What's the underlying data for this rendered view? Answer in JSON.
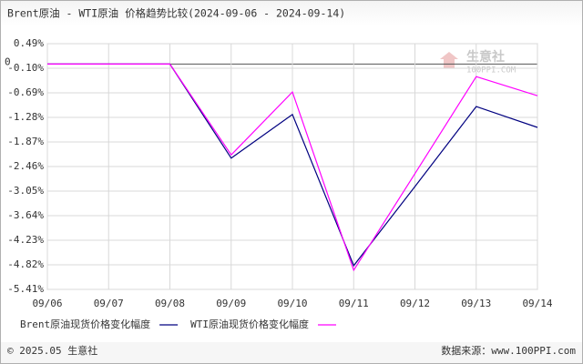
{
  "chart_data": {
    "type": "line",
    "title": "Brent原油 - WTI原油 价格趋势比较(2024-09-06 - 2024-09-14)",
    "categories": [
      "09/06",
      "09/07",
      "09/08",
      "09/09",
      "09/10",
      "09/11",
      "09/12",
      "09/13",
      "09/14"
    ],
    "series": [
      {
        "name": "Brent原油现货价格变化幅度",
        "color": "#000080",
        "values": [
          0,
          0,
          0,
          -2.26,
          -1.21,
          -4.84,
          -2.94,
          -1.02,
          -1.52
        ]
      },
      {
        "name": "WTI原油现货价格变化幅度",
        "color": "#ff00ff",
        "values": [
          0,
          0,
          0,
          -2.18,
          -0.67,
          -4.95,
          -2.63,
          -0.3,
          -0.76
        ]
      }
    ],
    "ylim": [
      -5.41,
      0.49
    ],
    "yticks": [
      {
        "value": 0.49,
        "label": "0.49%"
      },
      0,
      {
        "value": -0.1,
        "label": "-0.10%"
      },
      {
        "value": -0.69,
        "label": "-0.69%"
      },
      {
        "value": -1.28,
        "label": "-1.28%"
      },
      {
        "value": -1.87,
        "label": "-1.87%"
      },
      {
        "value": -2.46,
        "label": "-2.46%"
      },
      {
        "value": -3.05,
        "label": "-3.05%"
      },
      {
        "value": -3.64,
        "label": "-3.64%"
      },
      {
        "value": -4.23,
        "label": "-4.23%"
      },
      {
        "value": -4.82,
        "label": "-4.82%"
      },
      {
        "value": -5.41,
        "label": "-5.41%"
      }
    ],
    "grid": true,
    "watermark": {
      "name": "生意社",
      "site": "100PPI.COM"
    },
    "footer": {
      "left": "© 2025.05 生意社",
      "right": "数据来源：www.100PPI.com"
    }
  }
}
